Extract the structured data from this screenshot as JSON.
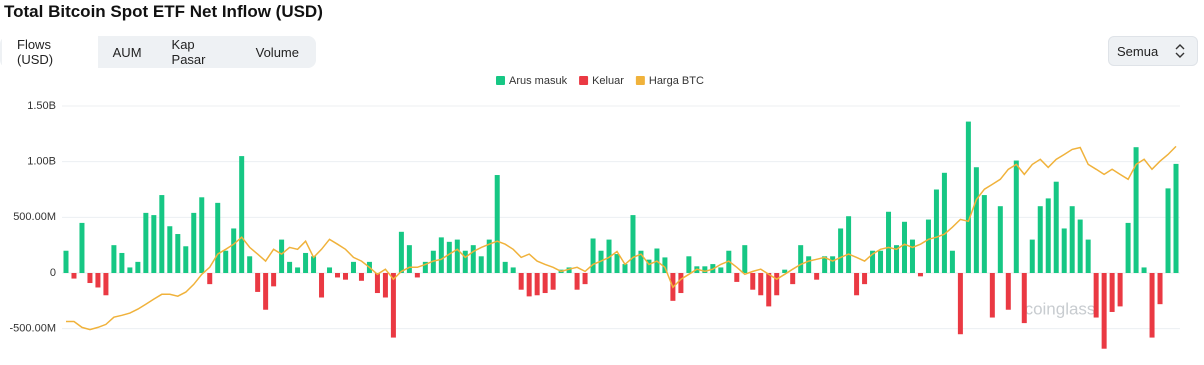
{
  "tabs": [
    "Flows (USD)",
    "AUM",
    "Kap Pasar",
    "Volume"
  ],
  "filter": "Semua",
  "watermark": "coinglass",
  "chart_data": {
    "type": "bar",
    "title": "Total Bitcoin Spot ETF Net Inflow (USD)",
    "ylim": [
      -750,
      1500
    ],
    "yticks": [
      {
        "value": 1500,
        "label": "1.50B"
      },
      {
        "value": 1000,
        "label": "1.00B"
      },
      {
        "value": 500,
        "label": "500.00M"
      },
      0,
      {
        "value": -500,
        "label": "-500.00M"
      }
    ],
    "y2lim": [
      28000,
      121000
    ],
    "grid": true,
    "legend": "top",
    "series": [
      {
        "name": "Arus masuk",
        "color": "#16c784",
        "values": [
          200,
          null,
          450,
          null,
          null,
          null,
          250,
          180,
          50,
          100,
          540,
          520,
          700,
          420,
          350,
          240,
          540,
          680,
          null,
          630,
          200,
          400,
          1050,
          150,
          null,
          null,
          null,
          300,
          100,
          50,
          180,
          150,
          null,
          50,
          null,
          null,
          100,
          null,
          100,
          null,
          null,
          null,
          370,
          250,
          null,
          100,
          200,
          320,
          280,
          300,
          200,
          250,
          150,
          300,
          880,
          100,
          50,
          null,
          null,
          null,
          null,
          null,
          30,
          50,
          null,
          null,
          310,
          200,
          300,
          170,
          80,
          520,
          200,
          120,
          220,
          140,
          null,
          null,
          150,
          60,
          60,
          80,
          50,
          200,
          null,
          250,
          null,
          null,
          null,
          null,
          30,
          null,
          250,
          150,
          null,
          150,
          150,
          400,
          510,
          null,
          null,
          200,
          200,
          550,
          250,
          460,
          300,
          null,
          480,
          750,
          900,
          200,
          null,
          1360,
          950,
          700,
          null,
          600,
          null,
          1010,
          null,
          300,
          600,
          670,
          820,
          400,
          600,
          480,
          300,
          null,
          null,
          null,
          null,
          450,
          1130,
          50,
          null,
          null,
          760,
          980
        ]
      },
      {
        "name": "Keluar",
        "color": "#ea3943",
        "values": [
          null,
          -50,
          null,
          -90,
          -130,
          -200,
          null,
          null,
          null,
          null,
          null,
          null,
          null,
          null,
          null,
          null,
          null,
          null,
          -100,
          null,
          null,
          null,
          null,
          null,
          -170,
          -330,
          -120,
          null,
          null,
          null,
          null,
          null,
          -220,
          null,
          -40,
          -60,
          null,
          -70,
          null,
          -180,
          -220,
          -580,
          null,
          null,
          -40,
          null,
          null,
          null,
          null,
          null,
          null,
          null,
          null,
          null,
          null,
          null,
          null,
          -150,
          -210,
          -200,
          -180,
          -150,
          null,
          null,
          -150,
          -100,
          null,
          null,
          null,
          null,
          null,
          null,
          null,
          null,
          null,
          null,
          -250,
          -180,
          null,
          null,
          null,
          null,
          null,
          null,
          -80,
          null,
          -150,
          -200,
          -300,
          -200,
          null,
          -100,
          null,
          null,
          -60,
          null,
          null,
          null,
          null,
          -200,
          -100,
          null,
          null,
          null,
          null,
          null,
          null,
          -30,
          null,
          null,
          null,
          null,
          -550,
          null,
          null,
          null,
          -400,
          null,
          -330,
          null,
          -450,
          null,
          null,
          null,
          null,
          null,
          null,
          null,
          null,
          -400,
          -680,
          -350,
          -300,
          null,
          null,
          null,
          -580,
          -280,
          null,
          null
        ]
      },
      {
        "name": "Harga BTC",
        "color": "#f0b23b",
        "axis": "y2",
        "values": [
          41000,
          41000,
          38800,
          38000,
          38800,
          39900,
          42600,
          43300,
          44100,
          45600,
          47400,
          49300,
          51100,
          51100,
          50400,
          51900,
          54800,
          58500,
          61100,
          66000,
          67800,
          69700,
          72300,
          68500,
          66000,
          63400,
          67800,
          66000,
          68500,
          67800,
          70800,
          64800,
          67800,
          71500,
          69700,
          67800,
          64800,
          63400,
          61100,
          58500,
          60400,
          56700,
          59600,
          61100,
          61100,
          62200,
          63400,
          64100,
          66000,
          67800,
          64800,
          67000,
          68500,
          69700,
          70800,
          69700,
          67800,
          64800,
          66000,
          63400,
          62200,
          61100,
          59600,
          60400,
          61100,
          59600,
          62200,
          63400,
          64800,
          67000,
          62200,
          64800,
          66000,
          62200,
          63400,
          61100,
          53700,
          56700,
          58500,
          60400,
          59600,
          60400,
          62200,
          63400,
          61100,
          58500,
          59600,
          60400,
          58500,
          56700,
          58500,
          60400,
          62200,
          63400,
          64100,
          64800,
          63400,
          64800,
          66000,
          64800,
          63400,
          66000,
          67800,
          68500,
          67800,
          69700,
          68500,
          69700,
          71500,
          72300,
          73400,
          76000,
          78900,
          78200,
          86300,
          90100,
          91900,
          93800,
          97500,
          99300,
          95600,
          99300,
          101200,
          98200,
          101200,
          103000,
          104900,
          105600,
          99300,
          97500,
          95600,
          97500,
          95600,
          93800,
          99300,
          101200,
          97500,
          100500,
          103000,
          106000
        ]
      }
    ]
  }
}
